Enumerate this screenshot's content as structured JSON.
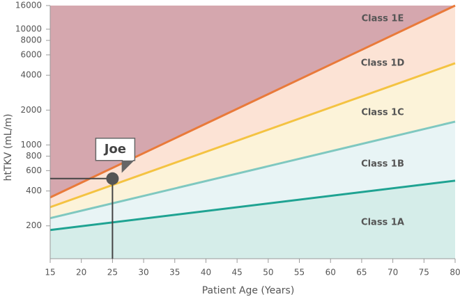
{
  "chart_data": {
    "type": "line",
    "x_label": "Patient Age (Years)",
    "y_label": "htTKV (mL/m)",
    "log_y": true,
    "xlim": [
      15,
      80
    ],
    "ylim": [
      104,
      16000
    ],
    "xticks": [
      15,
      20,
      25,
      30,
      35,
      40,
      45,
      50,
      55,
      60,
      65,
      70,
      75,
      80
    ],
    "yticks": [
      200,
      400,
      600,
      800,
      1000,
      2000,
      4000,
      6000,
      8000,
      10000,
      16000
    ],
    "x": [
      15,
      80
    ],
    "series": [
      {
        "color": "#1fa392",
        "values": [
          184,
          491
        ]
      },
      {
        "color": "#7fc8c0",
        "values": [
          233,
          1589
        ]
      },
      {
        "color": "#f4c342",
        "values": [
          290,
          5081
        ]
      },
      {
        "color": "#e97a3a",
        "values": [
          352,
          16000
        ]
      }
    ],
    "classes": [
      {
        "name": "Class 1A",
        "color": "#d5ede9"
      },
      {
        "name": "Class 1B",
        "color": "#e8f4f5"
      },
      {
        "name": "Class 1C",
        "color": "#fcf3d9"
      },
      {
        "name": "Class 1D",
        "color": "#fce3d5"
      },
      {
        "name": "Class 1E",
        "color": "#d5a7ae"
      }
    ],
    "point": {
      "label": "Joe",
      "x": 25,
      "y": 512
    }
  }
}
